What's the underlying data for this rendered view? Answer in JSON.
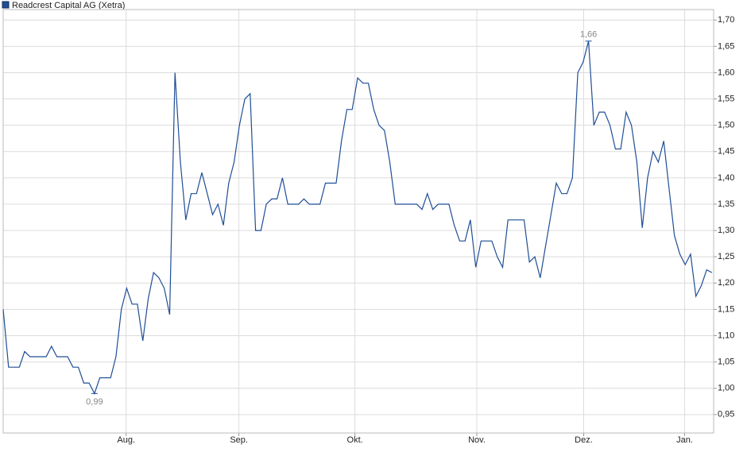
{
  "chart_data": {
    "type": "line",
    "series": [
      {
        "name": "Readcrest Capital AG (Xetra)",
        "color": "#1f4e96",
        "values": [
          1.15,
          1.04,
          1.04,
          1.04,
          1.07,
          1.06,
          1.06,
          1.06,
          1.06,
          1.08,
          1.06,
          1.06,
          1.06,
          1.04,
          1.04,
          1.01,
          1.01,
          0.99,
          1.02,
          1.02,
          1.02,
          1.06,
          1.15,
          1.19,
          1.16,
          1.16,
          1.09,
          1.17,
          1.22,
          1.21,
          1.19,
          1.14,
          1.6,
          1.43,
          1.32,
          1.37,
          1.37,
          1.41,
          1.37,
          1.33,
          1.35,
          1.31,
          1.39,
          1.43,
          1.5,
          1.55,
          1.56,
          1.3,
          1.3,
          1.35,
          1.36,
          1.36,
          1.4,
          1.35,
          1.35,
          1.35,
          1.36,
          1.35,
          1.35,
          1.35,
          1.39,
          1.39,
          1.39,
          1.47,
          1.53,
          1.53,
          1.59,
          1.58,
          1.58,
          1.53,
          1.5,
          1.49,
          1.43,
          1.35,
          1.35,
          1.35,
          1.35,
          1.35,
          1.34,
          1.37,
          1.34,
          1.35,
          1.35,
          1.35,
          1.31,
          1.28,
          1.28,
          1.32,
          1.23,
          1.28,
          1.28,
          1.28,
          1.25,
          1.23,
          1.32,
          1.32,
          1.32,
          1.32,
          1.24,
          1.25,
          1.21,
          1.27,
          1.33,
          1.39,
          1.37,
          1.37,
          1.4,
          1.6,
          1.62,
          1.66,
          1.5,
          1.525,
          1.525,
          1.5,
          1.455,
          1.455,
          1.525,
          1.5,
          1.43,
          1.305,
          1.4,
          1.45,
          1.43,
          1.47,
          1.38,
          1.29,
          1.255,
          1.235,
          1.255,
          1.175,
          1.195,
          1.225,
          1.22
        ]
      }
    ],
    "annotations": [
      {
        "text": "1,66",
        "value": 1.66
      },
      {
        "text": "0,99",
        "value": 0.99
      }
    ],
    "xlim": [
      0,
      132
    ],
    "xticks": [
      {
        "value": 22.9,
        "label": "Aug."
      },
      {
        "value": 43.9,
        "label": "Sep."
      },
      {
        "value": 65.5,
        "label": "Okt."
      },
      {
        "value": 88.2,
        "label": "Nov."
      },
      {
        "value": 108.1,
        "label": "Dez."
      },
      {
        "value": 126.9,
        "label": "Jan."
      }
    ],
    "ylim": [
      0.915,
      1.72
    ],
    "yticks": [
      {
        "value": 0.95,
        "label": "0,95"
      },
      {
        "value": 1.0,
        "label": "1,00"
      },
      {
        "value": 1.05,
        "label": "1,05"
      },
      {
        "value": 1.1,
        "label": "1,10"
      },
      {
        "value": 1.15,
        "label": "1,15"
      },
      {
        "value": 1.2,
        "label": "1,20"
      },
      {
        "value": 1.25,
        "label": "1,25"
      },
      {
        "value": 1.3,
        "label": "1,30"
      },
      {
        "value": 1.35,
        "label": "1,35"
      },
      {
        "value": 1.4,
        "label": "1,40"
      },
      {
        "value": 1.45,
        "label": "1,45"
      },
      {
        "value": 1.5,
        "label": "1,50"
      },
      {
        "value": 1.55,
        "label": "1,55"
      },
      {
        "value": 1.6,
        "label": "1,60"
      },
      {
        "value": 1.65,
        "label": "1,65"
      },
      {
        "value": 1.7,
        "label": "1,70"
      }
    ],
    "grid": true
  }
}
